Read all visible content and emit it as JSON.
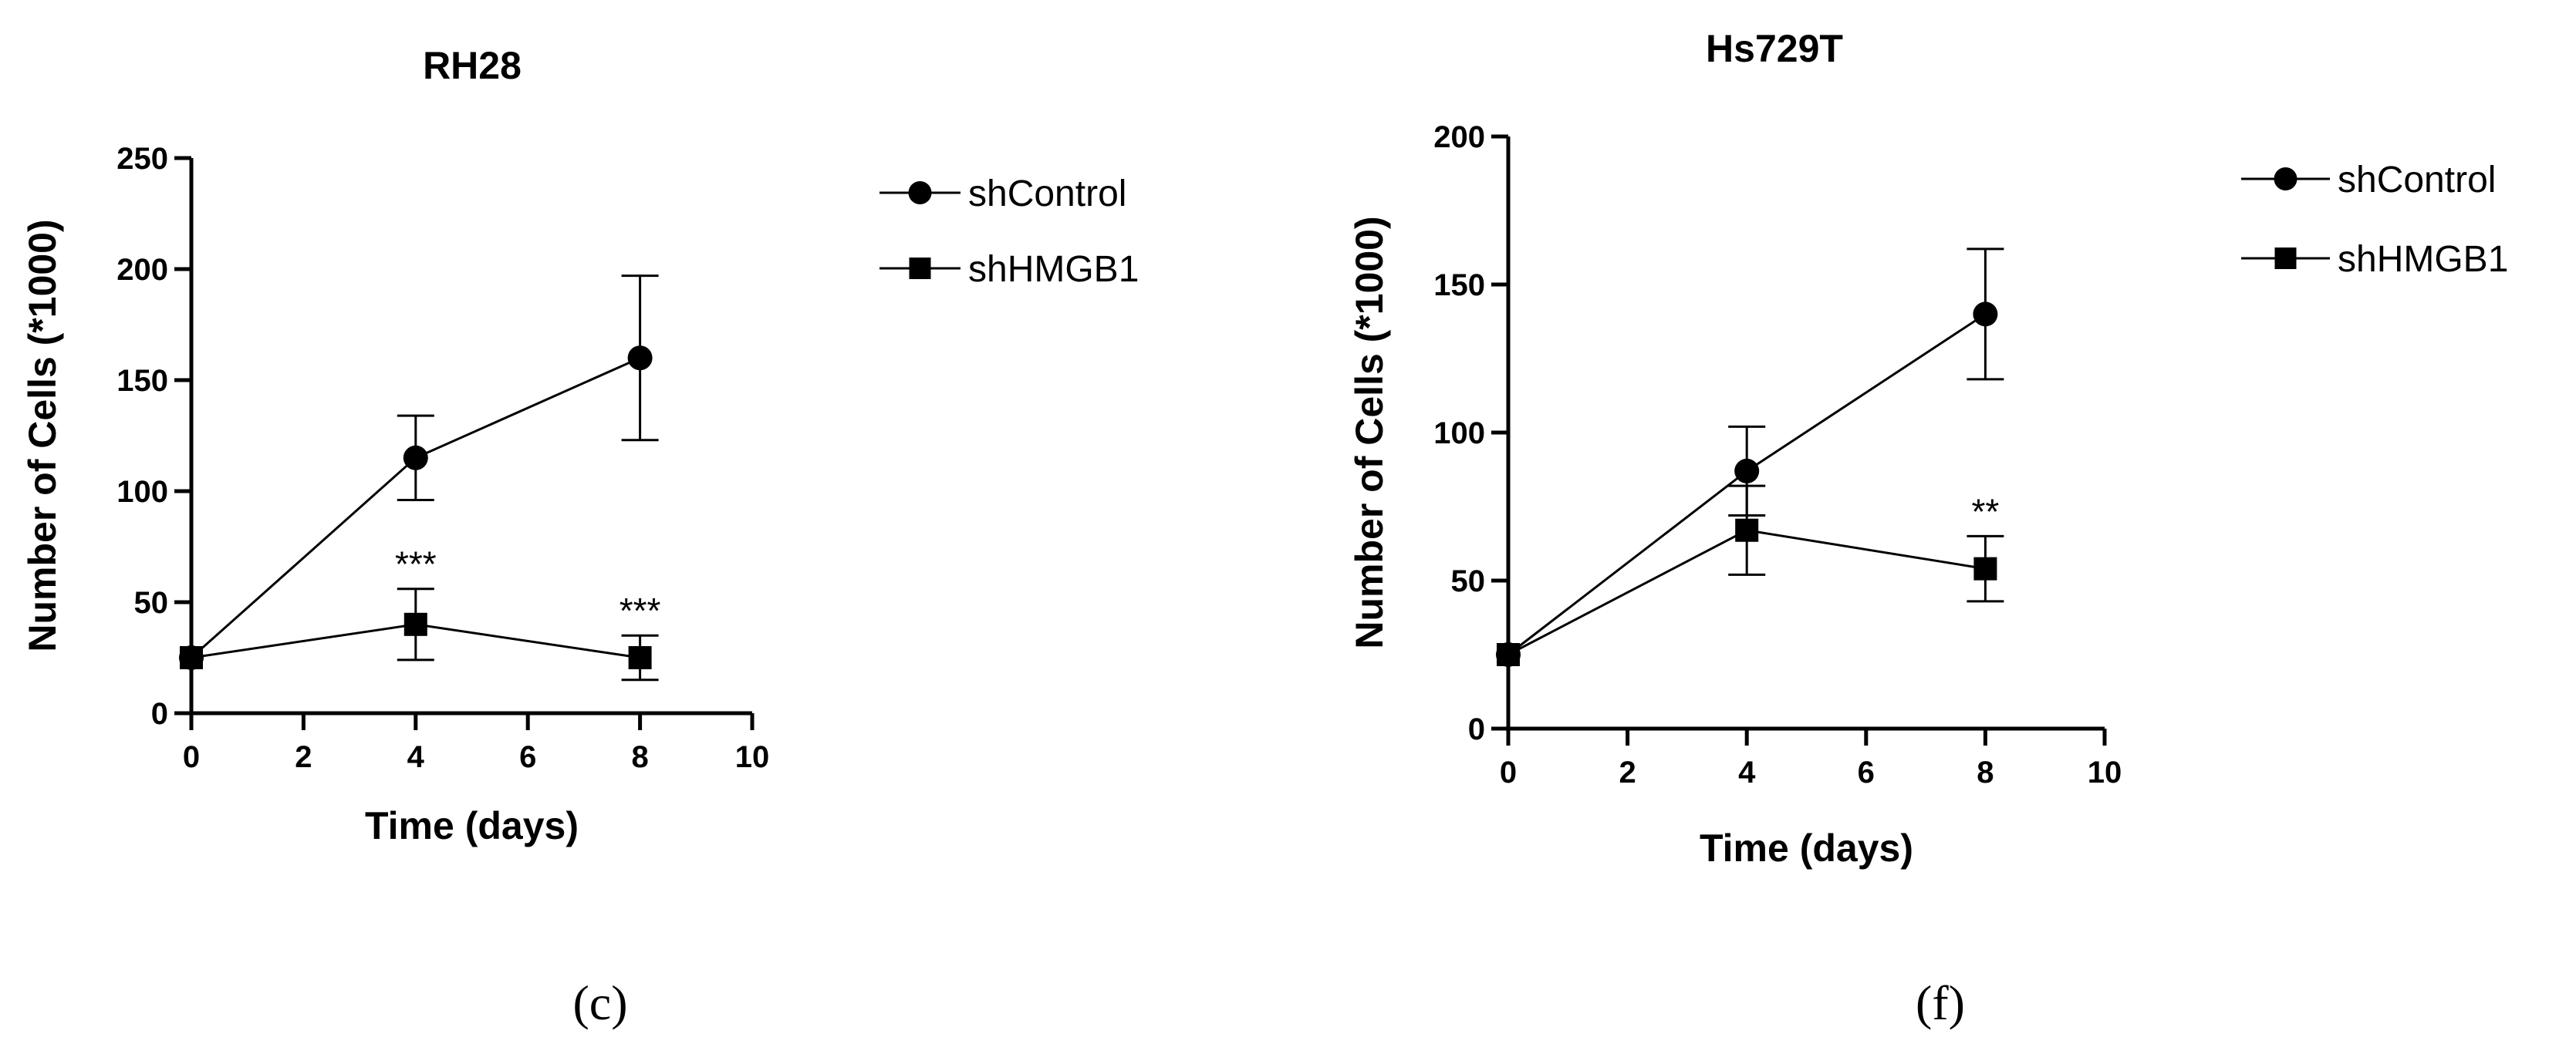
{
  "chart_data": [
    {
      "type": "line",
      "title": "RH28",
      "xlabel": "Time (days)",
      "ylabel": "Number of Cells (*1000)",
      "xlim": [
        0,
        10
      ],
      "ylim": [
        0,
        250
      ],
      "xticks": [
        0,
        2,
        4,
        6,
        8,
        10
      ],
      "yticks": [
        0,
        50,
        100,
        150,
        200,
        250
      ],
      "legend_position": "right",
      "grid": false,
      "panel_label": "(c)",
      "series": [
        {
          "name": "shControl",
          "marker": "circle",
          "x": [
            0,
            4,
            8
          ],
          "y": [
            25,
            115,
            160
          ],
          "error": [
            0,
            19,
            37
          ]
        },
        {
          "name": "shHMGB1",
          "marker": "square",
          "x": [
            0,
            4,
            8
          ],
          "y": [
            25,
            40,
            25
          ],
          "error": [
            0,
            16,
            10
          ]
        }
      ],
      "annotations": [
        {
          "x": 4,
          "y": 56,
          "text": "***"
        },
        {
          "x": 8,
          "y": 35,
          "text": "***"
        }
      ]
    },
    {
      "type": "line",
      "title": "Hs729T",
      "xlabel": "Time (days)",
      "ylabel": "Number of Cells (*1000)",
      "xlim": [
        0,
        10
      ],
      "ylim": [
        0,
        200
      ],
      "xticks": [
        0,
        2,
        4,
        6,
        8,
        10
      ],
      "yticks": [
        0,
        50,
        100,
        150,
        200
      ],
      "legend_position": "right",
      "grid": false,
      "panel_label": "(f)",
      "series": [
        {
          "name": "shControl",
          "marker": "circle",
          "x": [
            0,
            4,
            8
          ],
          "y": [
            25,
            87,
            140
          ],
          "error": [
            0,
            15,
            22
          ]
        },
        {
          "name": "shHMGB1",
          "marker": "square",
          "x": [
            0,
            4,
            8
          ],
          "y": [
            25,
            67,
            54
          ],
          "error": [
            0,
            15,
            11
          ]
        }
      ],
      "annotations": [
        {
          "x": 8,
          "y": 65,
          "text": "**"
        }
      ]
    }
  ]
}
